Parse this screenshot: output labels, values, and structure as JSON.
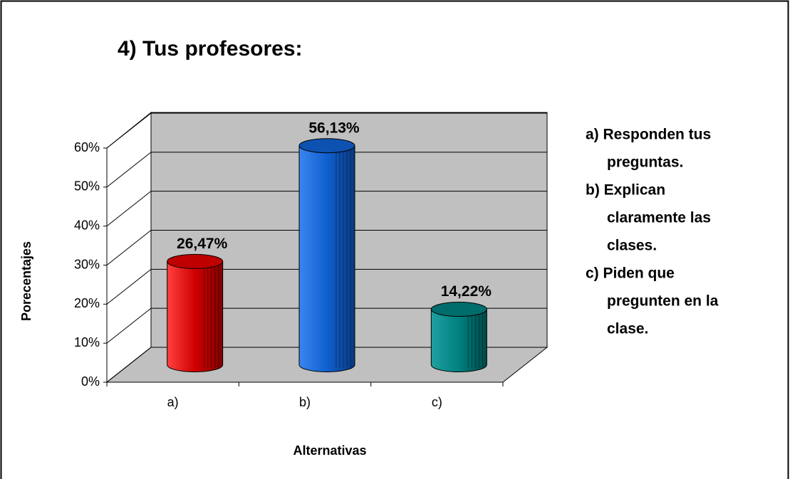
{
  "chart_data": {
    "type": "bar3d",
    "title": "4) Tus profesores:",
    "x_label": "Alternativas",
    "y_label": "Porecentajes",
    "categories": [
      "a)",
      "b)",
      "c)"
    ],
    "values": [
      26.47,
      56.13,
      14.22
    ],
    "value_labels": [
      "26,47%",
      "56,13%",
      "14,22%"
    ],
    "colors": [
      "#e00000",
      "#1060d0",
      "#008080"
    ],
    "ylim": [
      0,
      60
    ],
    "yticks": [
      {
        "value": 0,
        "label": "0%"
      },
      {
        "value": 10,
        "label": "10%"
      },
      {
        "value": 20,
        "label": "20%"
      },
      {
        "value": 30,
        "label": "30%"
      },
      {
        "value": 40,
        "label": "40%"
      },
      {
        "value": 50,
        "label": "50%"
      },
      {
        "value": 60,
        "label": "60%"
      }
    ],
    "grid": true,
    "notes": [
      [
        "a) Responden tus",
        "preguntas."
      ],
      [
        "b) Explican",
        "claramente las",
        "clases."
      ],
      [
        "c) Piden que",
        "pregunten en la",
        "clase."
      ]
    ]
  }
}
